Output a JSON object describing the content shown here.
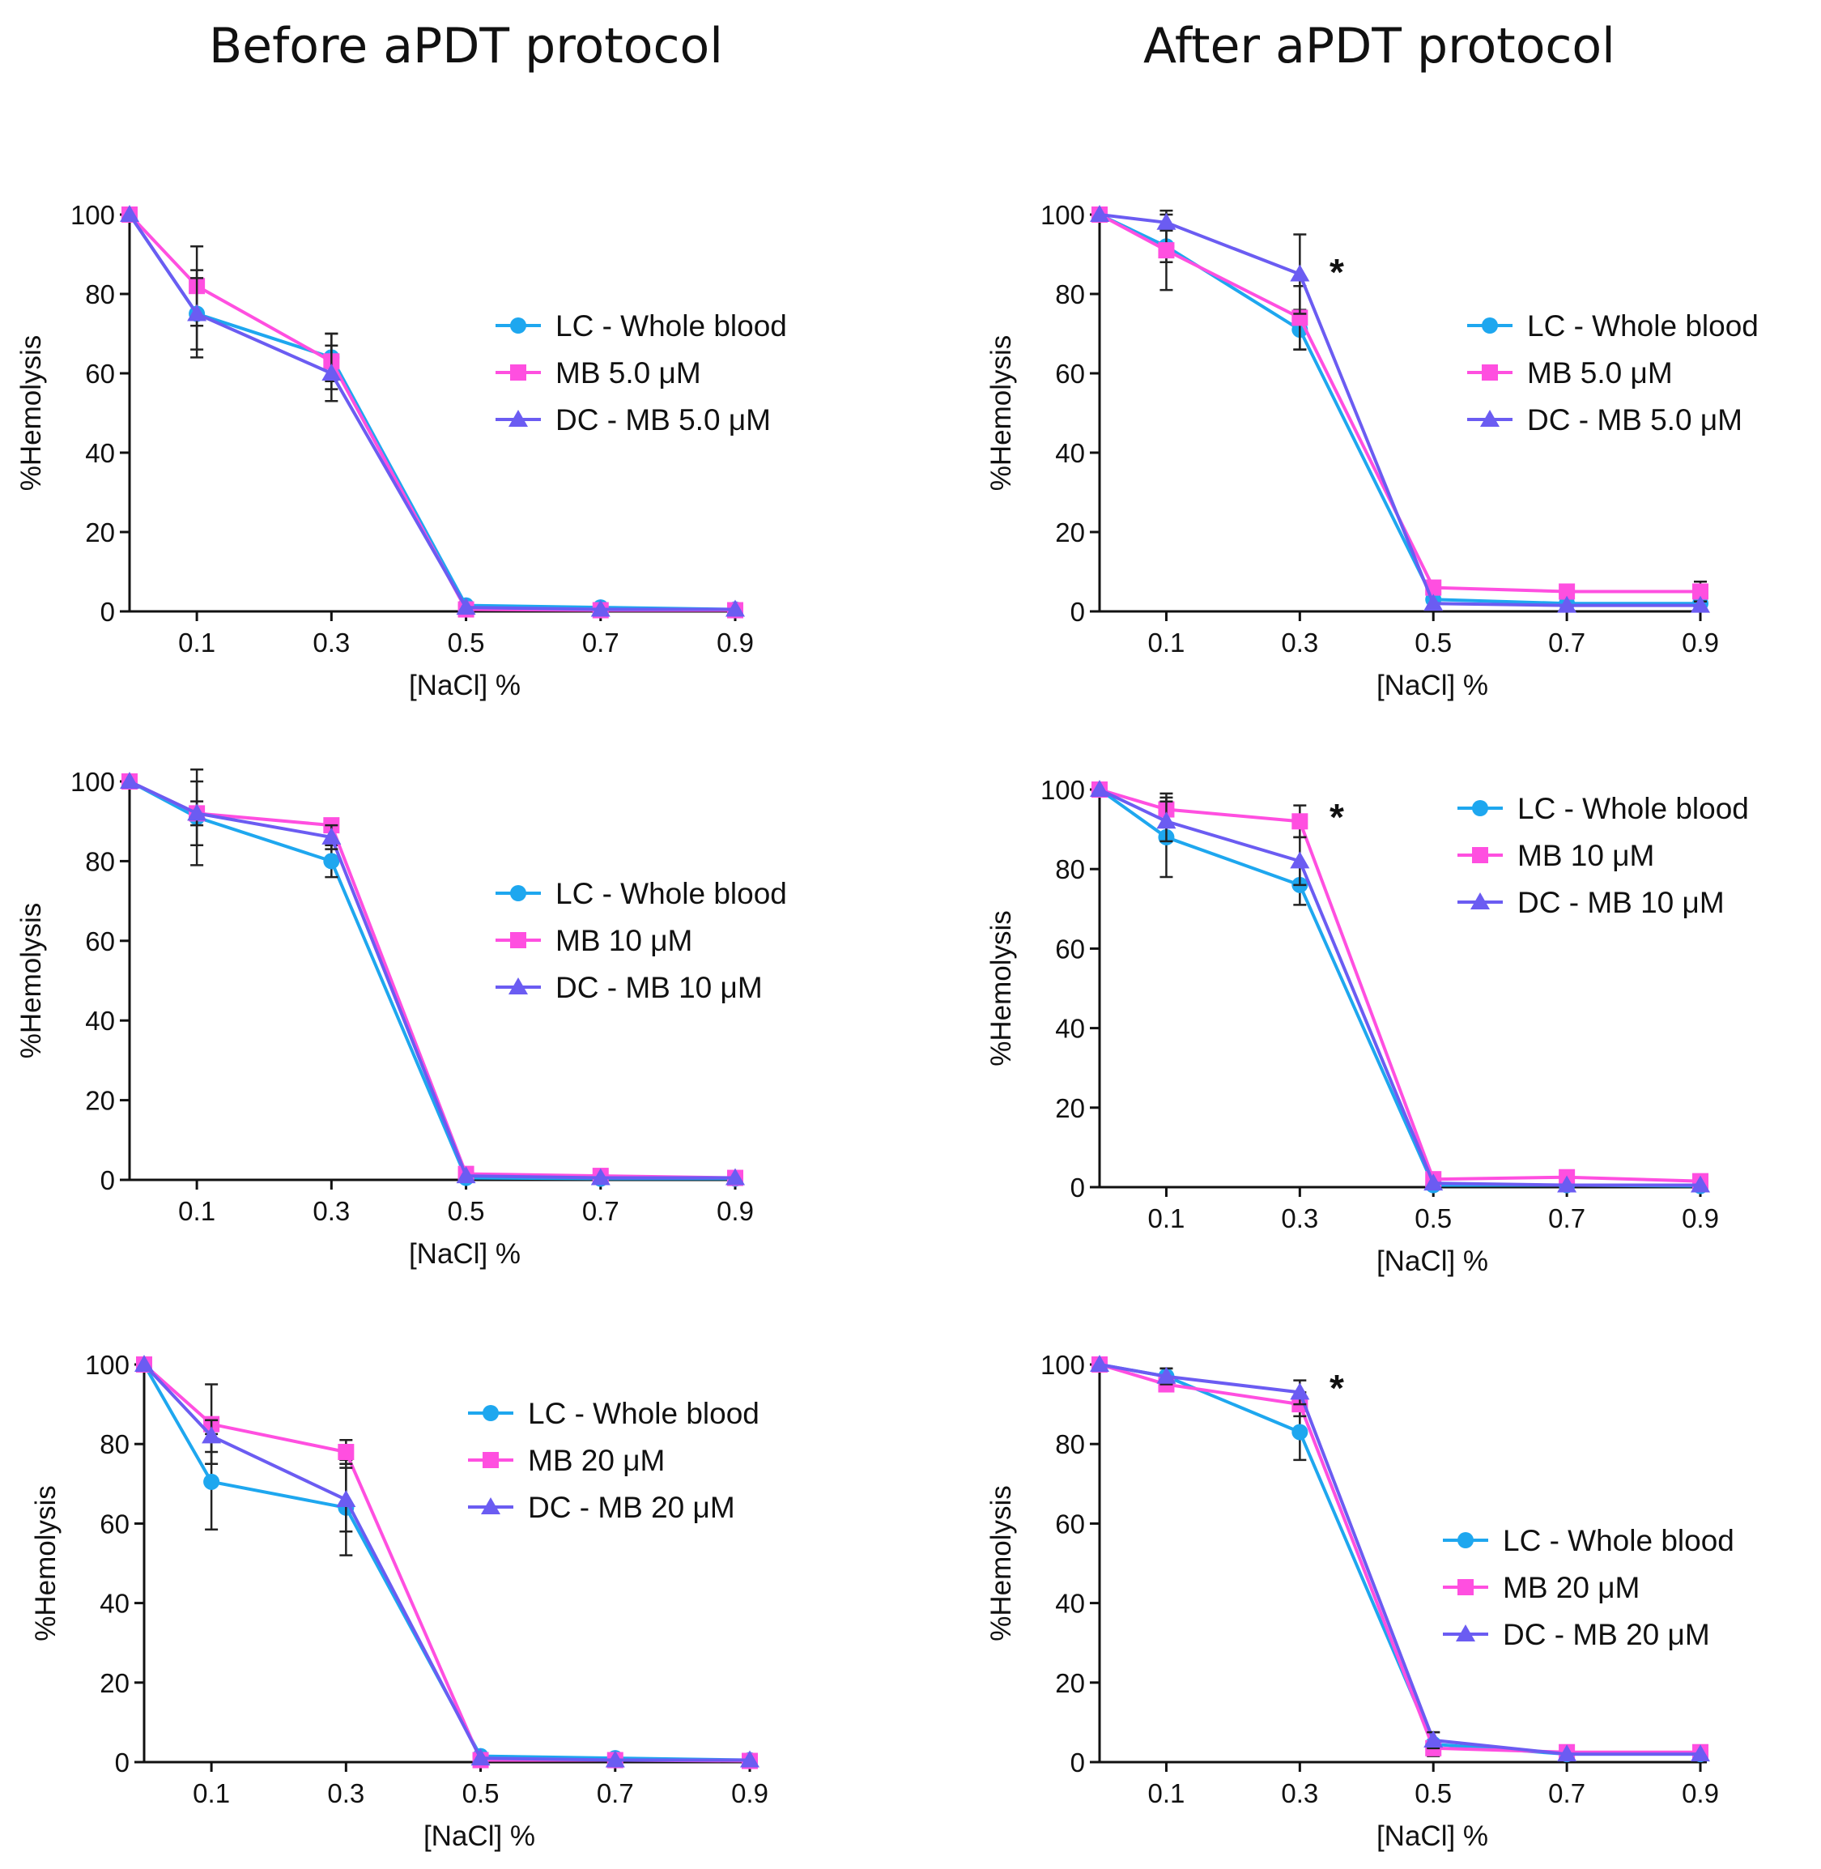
{
  "column_titles": {
    "left": "Before aPDT protocol",
    "right": "After aPDT protocol"
  },
  "colors": {
    "lc": "#1ea7ef",
    "mb": "#ff4fe0",
    "dc": "#6b5cf2",
    "axis": "#111111"
  },
  "chart_data": [
    {
      "id": "before-5",
      "type": "line",
      "xlabel": "[NaCl] %",
      "ylabel": "%Hemolysis",
      "x": [
        0,
        0.1,
        0.3,
        0.5,
        0.7,
        0.9
      ],
      "tick_labels": [
        "0.1",
        "0.3",
        "0.5",
        "0.7",
        "0.9"
      ],
      "ylim": [
        0,
        100
      ],
      "yticks": [
        "0",
        "20",
        "40",
        "60",
        "80",
        "100"
      ],
      "legend": [
        "LC - Whole blood",
        "MB 5.0 μM",
        "DC - MB 5.0 μM"
      ],
      "significance": "",
      "series": [
        {
          "name": "LC - Whole blood",
          "values": [
            100,
            75,
            64,
            1.5,
            1,
            0.5
          ],
          "errors": [
            0,
            11,
            6,
            0,
            0,
            0
          ]
        },
        {
          "name": "MB 5.0 μM",
          "values": [
            100,
            82,
            63,
            0.5,
            0.3,
            0.3
          ],
          "errors": [
            0,
            10,
            7,
            0,
            0,
            0
          ]
        },
        {
          "name": "DC - MB 5.0 μM",
          "values": [
            100,
            75,
            60,
            1,
            0.5,
            0.5
          ],
          "errors": [
            0,
            9,
            7,
            0,
            0,
            0
          ]
        }
      ]
    },
    {
      "id": "after-5",
      "type": "line",
      "xlabel": "[NaCl] %",
      "ylabel": "%Hemolysis",
      "x": [
        0,
        0.1,
        0.3,
        0.5,
        0.7,
        0.9
      ],
      "tick_labels": [
        "0.1",
        "0.3",
        "0.5",
        "0.7",
        "0.9"
      ],
      "ylim": [
        0,
        100
      ],
      "yticks": [
        "0",
        "20",
        "40",
        "60",
        "80",
        "100"
      ],
      "legend": [
        "LC - Whole blood",
        "MB 5.0 μM",
        "DC - MB 5.0 μM"
      ],
      "significance": "*",
      "series": [
        {
          "name": "LC - Whole blood",
          "values": [
            100,
            92,
            71,
            3,
            2,
            2
          ],
          "errors": [
            0,
            4,
            5,
            0,
            0,
            0
          ]
        },
        {
          "name": "MB 5.0 μM",
          "values": [
            100,
            91,
            74,
            6,
            5,
            5
          ],
          "errors": [
            0,
            10,
            8,
            0,
            0,
            2.5
          ]
        },
        {
          "name": "DC - MB 5.0 μM",
          "values": [
            100,
            98,
            85,
            2,
            1.5,
            1.5
          ],
          "errors": [
            0,
            2,
            10,
            0,
            0,
            0
          ]
        }
      ]
    },
    {
      "id": "before-10",
      "type": "line",
      "xlabel": "[NaCl] %",
      "ylabel": "%Hemolysis",
      "x": [
        0,
        0.1,
        0.3,
        0.5,
        0.7,
        0.9
      ],
      "tick_labels": [
        "0.1",
        "0.3",
        "0.5",
        "0.7",
        "0.9"
      ],
      "ylim": [
        0,
        100
      ],
      "yticks": [
        "0",
        "20",
        "40",
        "60",
        "80",
        "100"
      ],
      "legend": [
        "LC - Whole blood",
        "MB 10 μM",
        "DC - MB 10 μM"
      ],
      "significance": "",
      "series": [
        {
          "name": "LC - Whole blood",
          "values": [
            100,
            91,
            80,
            0.5,
            0.3,
            0.3
          ],
          "errors": [
            0,
            12,
            4,
            0,
            0,
            0
          ]
        },
        {
          "name": "MB 10 μM",
          "values": [
            100,
            92,
            89,
            1.5,
            1,
            0.5
          ],
          "errors": [
            0,
            3,
            0,
            0,
            0,
            0
          ]
        },
        {
          "name": "DC - MB 10 μM",
          "values": [
            100,
            92,
            86,
            1,
            0.5,
            0.5
          ],
          "errors": [
            0,
            8,
            3,
            0,
            0,
            0
          ]
        }
      ]
    },
    {
      "id": "after-10",
      "type": "line",
      "xlabel": "[NaCl] %",
      "ylabel": "%Hemolysis",
      "x": [
        0,
        0.1,
        0.3,
        0.5,
        0.7,
        0.9
      ],
      "tick_labels": [
        "0.1",
        "0.3",
        "0.5",
        "0.7",
        "0.9"
      ],
      "ylim": [
        0,
        100
      ],
      "yticks": [
        "0",
        "20",
        "40",
        "60",
        "80",
        "100"
      ],
      "legend": [
        "LC - Whole blood",
        "MB 10 μM",
        "DC - MB 10 μM"
      ],
      "significance": "*",
      "series": [
        {
          "name": "LC - Whole blood",
          "values": [
            100,
            88,
            76,
            0.5,
            0.5,
            0.3
          ],
          "errors": [
            0,
            10,
            5,
            0,
            0,
            0
          ]
        },
        {
          "name": "MB 10 μM",
          "values": [
            100,
            95,
            92,
            2,
            2.5,
            1.5
          ],
          "errors": [
            0,
            4,
            4,
            0,
            0,
            0
          ]
        },
        {
          "name": "DC - MB 10 μM",
          "values": [
            100,
            92,
            82,
            1,
            0.5,
            0.5
          ],
          "errors": [
            0,
            5,
            6,
            0,
            0,
            0
          ]
        }
      ]
    },
    {
      "id": "before-20",
      "type": "line",
      "xlabel": "[NaCl] %",
      "ylabel": "%Hemolysis",
      "x": [
        0,
        0.1,
        0.3,
        0.5,
        0.7,
        0.9
      ],
      "tick_labels": [
        "0.1",
        "0.3",
        "0.5",
        "0.7",
        "0.9"
      ],
      "ylim": [
        0,
        100
      ],
      "yticks": [
        "0",
        "20",
        "40",
        "60",
        "80",
        "100"
      ],
      "legend": [
        "LC - Whole blood",
        "MB 20 μM",
        "DC - MB 20 μM"
      ],
      "significance": "",
      "series": [
        {
          "name": "LC - Whole blood",
          "values": [
            100,
            70.5,
            64,
            1.5,
            1,
            0.5
          ],
          "errors": [
            0,
            12,
            12,
            0,
            0,
            0
          ]
        },
        {
          "name": "MB 20 μM",
          "values": [
            100,
            85,
            78,
            0.5,
            0.5,
            0.3
          ],
          "errors": [
            0,
            10,
            3,
            0,
            0,
            0
          ]
        },
        {
          "name": "DC - MB 20 μM",
          "values": [
            100,
            82,
            66,
            1,
            0.5,
            0.5
          ],
          "errors": [
            0,
            4,
            8,
            0,
            0,
            0
          ]
        }
      ]
    },
    {
      "id": "after-20",
      "type": "line",
      "xlabel": "[NaCl] %",
      "ylabel": "%Hemolysis",
      "x": [
        0,
        0.1,
        0.3,
        0.5,
        0.7,
        0.9
      ],
      "tick_labels": [
        "0.1",
        "0.3",
        "0.5",
        "0.7",
        "0.9"
      ],
      "ylim": [
        0,
        100
      ],
      "yticks": [
        "0",
        "20",
        "40",
        "60",
        "80",
        "100"
      ],
      "legend": [
        "LC - Whole blood",
        "MB 20 μM",
        "DC - MB 20 μM"
      ],
      "significance": "*",
      "series": [
        {
          "name": "LC - Whole blood",
          "values": [
            100,
            97,
            83,
            4.5,
            2,
            2
          ],
          "errors": [
            0,
            2,
            7,
            3,
            0,
            0
          ]
        },
        {
          "name": "MB 20 μM",
          "values": [
            100,
            95,
            90,
            3.5,
            2.5,
            2.5
          ],
          "errors": [
            0,
            1,
            3,
            0,
            0,
            0
          ]
        },
        {
          "name": "DC - MB 20 μM",
          "values": [
            100,
            97,
            93,
            5.5,
            2,
            2
          ],
          "errors": [
            0,
            2,
            3,
            2,
            0,
            0
          ]
        }
      ]
    }
  ]
}
